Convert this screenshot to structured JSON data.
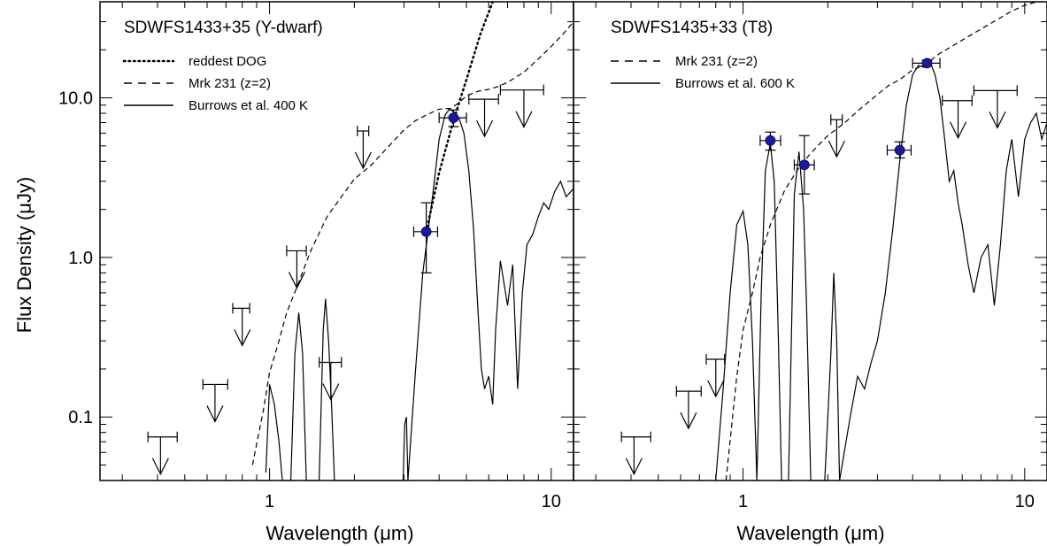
{
  "figure": {
    "ylabel": "Flux Density (μJy)",
    "colors": {
      "axes": "#000000",
      "points": "#1a1aa0",
      "background": "#ffffff"
    }
  },
  "chart_data": [
    {
      "type": "line",
      "title": "SDWFS1433+35 (Y-dwarf)",
      "xlabel": "Wavelength (μm)",
      "ylabel": "Flux Density (μJy)",
      "xscale": "log",
      "yscale": "log",
      "xlim": [
        0.25,
        12.0
      ],
      "ylim": [
        0.04,
        40.0
      ],
      "x_ticks": [
        {
          "value": 1,
          "label": "1"
        },
        {
          "value": 10,
          "label": "10"
        }
      ],
      "y_ticks": [
        {
          "value": 0.1,
          "label": "0.1"
        },
        {
          "value": 1,
          "label": "1.0"
        },
        {
          "value": 10,
          "label": "10.0"
        }
      ],
      "legend": [
        {
          "label": "reddest DOG",
          "style": "dotted"
        },
        {
          "label": "Mrk 231 (z=2)",
          "style": "dashed"
        },
        {
          "label": "Burrows et al. 400 K",
          "style": "solid"
        }
      ],
      "series": [
        {
          "name": "reddest DOG",
          "style": "dotted",
          "x": [
            3.6,
            4.0,
            4.5,
            5.0,
            5.6,
            6.2,
            6.6
          ],
          "y": [
            1.45,
            3.4,
            7.2,
            13,
            25,
            40,
            55
          ]
        },
        {
          "name": "Mrk 231 (z=2)",
          "style": "dashed",
          "x": [
            0.87,
            0.95,
            1.0,
            1.08,
            1.15,
            1.25,
            1.4,
            1.6,
            1.8,
            2.0,
            2.3,
            2.6,
            3.0,
            3.3,
            3.6,
            4.0,
            4.4,
            4.7,
            5.0,
            5.5,
            6.0,
            6.5,
            7.0,
            8.0,
            9.0,
            10.0,
            11.0,
            12.0
          ],
          "y": [
            0.05,
            0.11,
            0.19,
            0.3,
            0.45,
            0.65,
            1.1,
            1.8,
            2.4,
            3.1,
            3.8,
            4.8,
            6.3,
            7.2,
            7.8,
            8.5,
            8.6,
            9.3,
            10.3,
            11.0,
            11.3,
            11.8,
            12.5,
            14.5,
            17.5,
            21.0,
            25.0,
            30.0
          ]
        },
        {
          "name": "Burrows et al. 400 K",
          "style": "solid",
          "x": [
            0.97,
            1.0,
            1.04,
            1.08,
            1.11,
            1.19,
            1.23,
            1.27,
            1.31,
            1.35,
            1.5,
            1.55,
            1.58,
            1.62,
            1.66,
            1.7,
            2.98,
            3.02,
            3.06,
            3.1,
            3.3,
            3.5,
            3.8,
            4.0,
            4.2,
            4.35,
            4.5,
            4.7,
            4.9,
            5.1,
            5.3,
            5.5,
            5.65,
            5.8,
            6.0,
            6.2,
            6.35,
            6.6,
            7.0,
            7.3,
            7.6,
            7.9,
            8.2,
            8.6,
            9.0,
            9.4,
            9.8,
            10.3,
            10.8,
            11.3,
            12.0
          ],
          "y": [
            0.045,
            0.16,
            0.12,
            0.07,
            0.04,
            0.04,
            0.25,
            0.45,
            0.25,
            0.04,
            0.04,
            0.35,
            0.55,
            0.3,
            0.12,
            0.04,
            0.04,
            0.09,
            0.1,
            0.04,
            0.2,
            0.8,
            2.5,
            5.5,
            7.8,
            8.5,
            8.2,
            7.5,
            6.0,
            3.5,
            1.5,
            0.45,
            0.2,
            0.15,
            0.18,
            0.12,
            0.35,
            0.95,
            0.5,
            0.9,
            0.15,
            0.6,
            1.2,
            1.4,
            1.8,
            2.2,
            2.0,
            2.6,
            3.0,
            2.4,
            2.7
          ]
        }
      ],
      "detections": [
        {
          "x": 3.6,
          "xerr_low": 3.25,
          "xerr_high": 3.95,
          "y": 1.45,
          "yerr_low": 0.8,
          "yerr_high": 2.2
        },
        {
          "x": 4.5,
          "xerr_low": 4.0,
          "xerr_high": 5.0,
          "y": 7.5,
          "yerr_low": 6.6,
          "yerr_high": 8.4
        }
      ],
      "upper_limits": [
        {
          "x": 0.41,
          "x_low": 0.37,
          "x_high": 0.47,
          "y": 0.075
        },
        {
          "x": 0.64,
          "x_low": 0.58,
          "x_high": 0.71,
          "y": 0.16
        },
        {
          "x": 0.8,
          "x_low": 0.74,
          "x_high": 0.85,
          "y": 0.48
        },
        {
          "x": 1.25,
          "x_low": 1.15,
          "x_high": 1.35,
          "y": 1.1
        },
        {
          "x": 1.65,
          "x_low": 1.5,
          "x_high": 1.8,
          "y": 0.22
        },
        {
          "x": 2.15,
          "x_low": 2.05,
          "x_high": 2.25,
          "y": 6.2
        },
        {
          "x": 5.8,
          "x_low": 5.1,
          "x_high": 6.5,
          "y": 9.8
        },
        {
          "x": 8.0,
          "x_low": 6.6,
          "x_high": 9.4,
          "y": 11.2
        }
      ]
    },
    {
      "type": "line",
      "title": "SDWFS1435+33 (T8)",
      "xlabel": "Wavelength (μm)",
      "xscale": "log",
      "yscale": "log",
      "xlim": [
        0.25,
        12.0
      ],
      "ylim": [
        0.04,
        40.0
      ],
      "x_ticks": [
        {
          "value": 1,
          "label": "1"
        },
        {
          "value": 10,
          "label": "10"
        }
      ],
      "legend": [
        {
          "label": "Mrk 231 (z=2)",
          "style": "dashed"
        },
        {
          "label": "Burrows et al. 600 K",
          "style": "solid"
        }
      ],
      "series": [
        {
          "name": "Mrk 231 (z=2)",
          "style": "dashed",
          "x": [
            0.87,
            0.95,
            1.0,
            1.08,
            1.15,
            1.25,
            1.4,
            1.6,
            1.8,
            2.0,
            2.3,
            2.6,
            3.0,
            3.3,
            3.6,
            4.0,
            4.4,
            4.7,
            5.0,
            5.5,
            6.0,
            6.5,
            7.0,
            8.0,
            9.0,
            10.0,
            11.0,
            12.0
          ],
          "y": [
            0.04,
            0.18,
            0.35,
            0.6,
            1.0,
            1.6,
            2.6,
            3.8,
            4.8,
            5.8,
            7.0,
            8.5,
            10.5,
            12.0,
            13.0,
            15.0,
            16.0,
            17.5,
            19.0,
            21.0,
            23.0,
            25.0,
            27.0,
            31.0,
            35.0,
            38.0,
            40.0,
            40.0
          ]
        },
        {
          "name": "Burrows et al. 600 K",
          "style": "solid",
          "x": [
            0.8,
            0.85,
            0.9,
            0.95,
            1.0,
            1.04,
            1.08,
            1.12,
            1.16,
            1.2,
            1.25,
            1.29,
            1.33,
            1.37,
            1.45,
            1.52,
            1.58,
            1.64,
            1.68,
            1.74,
            1.8,
            1.95,
            2.05,
            2.1,
            2.15,
            2.2,
            2.4,
            2.55,
            2.7,
            2.85,
            3.0,
            3.2,
            3.4,
            3.6,
            3.8,
            4.0,
            4.2,
            4.4,
            4.6,
            4.8,
            5.0,
            5.2,
            5.4,
            5.6,
            5.8,
            6.0,
            6.3,
            6.6,
            7.0,
            7.4,
            7.8,
            8.2,
            8.6,
            9.0,
            9.5,
            10.0,
            10.5,
            11.0,
            11.5,
            12.0
          ],
          "y": [
            0.04,
            0.15,
            0.6,
            1.6,
            1.95,
            1.2,
            0.3,
            0.04,
            0.6,
            3.5,
            5.2,
            3.0,
            0.4,
            0.04,
            0.04,
            2.5,
            4.6,
            2.0,
            0.5,
            0.04,
            0.04,
            0.04,
            0.25,
            0.8,
            0.3,
            0.04,
            0.1,
            0.18,
            0.15,
            0.22,
            0.3,
            0.6,
            1.5,
            4.0,
            9.0,
            14.0,
            16.0,
            15.5,
            17.0,
            14.0,
            10.0,
            5.5,
            3.0,
            3.5,
            2.2,
            1.6,
            0.9,
            0.6,
            1.0,
            1.2,
            0.5,
            1.2,
            3.5,
            5.5,
            2.4,
            5.5,
            7.0,
            8.0,
            5.5,
            7.0
          ]
        }
      ],
      "detections": [
        {
          "x": 1.25,
          "xerr_low": 1.15,
          "xerr_high": 1.36,
          "y": 5.4,
          "yerr_low": 4.7,
          "yerr_high": 6.1
        },
        {
          "x": 1.65,
          "xerr_low": 1.52,
          "xerr_high": 1.79,
          "y": 3.8,
          "yerr_low": 2.5,
          "yerr_high": 5.8
        },
        {
          "x": 3.6,
          "xerr_low": 3.25,
          "xerr_high": 3.95,
          "y": 4.7,
          "yerr_low": 4.2,
          "yerr_high": 5.3
        },
        {
          "x": 4.5,
          "xerr_low": 4.0,
          "xerr_high": 5.0,
          "y": 16.5,
          "yerr_low": 15.8,
          "yerr_high": 17.2
        }
      ],
      "upper_limits": [
        {
          "x": 0.41,
          "x_low": 0.37,
          "x_high": 0.47,
          "y": 0.075
        },
        {
          "x": 0.64,
          "x_low": 0.58,
          "x_high": 0.71,
          "y": 0.145
        },
        {
          "x": 0.8,
          "x_low": 0.74,
          "x_high": 0.86,
          "y": 0.23
        },
        {
          "x": 2.15,
          "x_low": 2.05,
          "x_high": 2.25,
          "y": 7.3
        },
        {
          "x": 5.8,
          "x_low": 5.1,
          "x_high": 6.5,
          "y": 9.6
        },
        {
          "x": 8.0,
          "x_low": 6.6,
          "x_high": 9.4,
          "y": 11.1
        }
      ]
    }
  ]
}
